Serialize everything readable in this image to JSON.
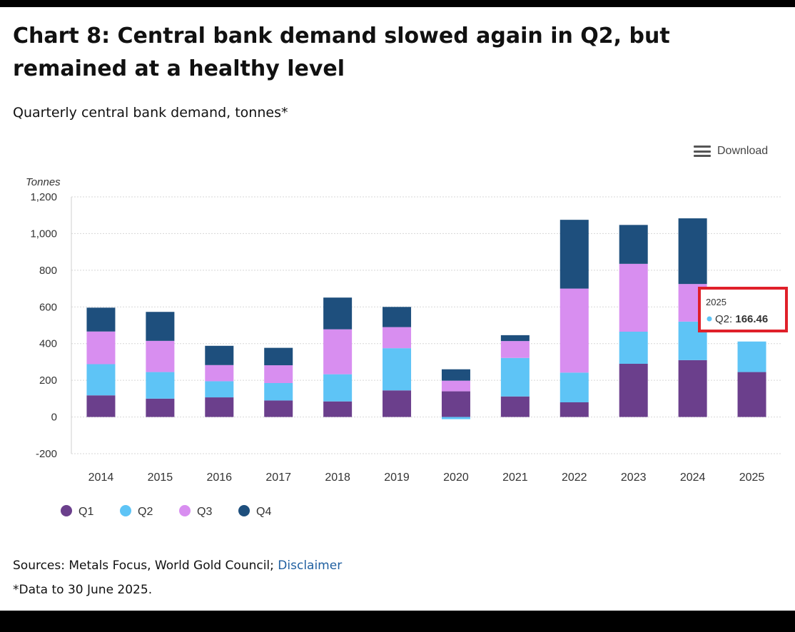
{
  "title": "Chart 8: Central bank demand slowed again in Q2, but remained at a healthy level",
  "subtitle": "Quarterly central bank demand, tonnes*",
  "download_label": "Download",
  "sources_prefix": "Sources: Metals Focus, World Gold Council;",
  "disclaimer_label": "Disclaimer",
  "note": "*Data to 30 June 2025.",
  "colors": {
    "Q1": "#6b3f8c",
    "Q2": "#5ec4f6",
    "Q3": "#d88ef0",
    "Q4": "#1e4f7d",
    "highlight": "#e0202a"
  },
  "tooltip": {
    "year": "2025",
    "series": "Q2",
    "separator": ": ",
    "value": "166.46"
  },
  "chart_data": {
    "type": "bar",
    "stacked": true,
    "ylabel": "Tonnes",
    "ylim": [
      -200,
      1200
    ],
    "yticks": [
      -200,
      0,
      200,
      400,
      600,
      800,
      1000,
      1200
    ],
    "ytick_labels": [
      "-200",
      "0",
      "200",
      "400",
      "600",
      "800",
      "1,000",
      "1,200"
    ],
    "grid": true,
    "legend": "bottom-left",
    "categories": [
      "2014",
      "2015",
      "2016",
      "2017",
      "2018",
      "2019",
      "2020",
      "2021",
      "2022",
      "2023",
      "2024",
      "2025"
    ],
    "series": [
      {
        "name": "Q1",
        "values": [
          118,
          100,
          107,
          90,
          85,
          145,
          140,
          112,
          80,
          290,
          310,
          245
        ]
      },
      {
        "name": "Q2",
        "values": [
          170,
          145,
          88,
          95,
          148,
          230,
          -12,
          210,
          162,
          175,
          210,
          166.46
        ]
      },
      {
        "name": "Q3",
        "values": [
          178,
          170,
          88,
          97,
          245,
          115,
          58,
          92,
          458,
          370,
          205,
          0
        ]
      },
      {
        "name": "Q4",
        "values": [
          130,
          158,
          105,
          95,
          173,
          110,
          62,
          32,
          375,
          212,
          358,
          0
        ]
      }
    ]
  }
}
